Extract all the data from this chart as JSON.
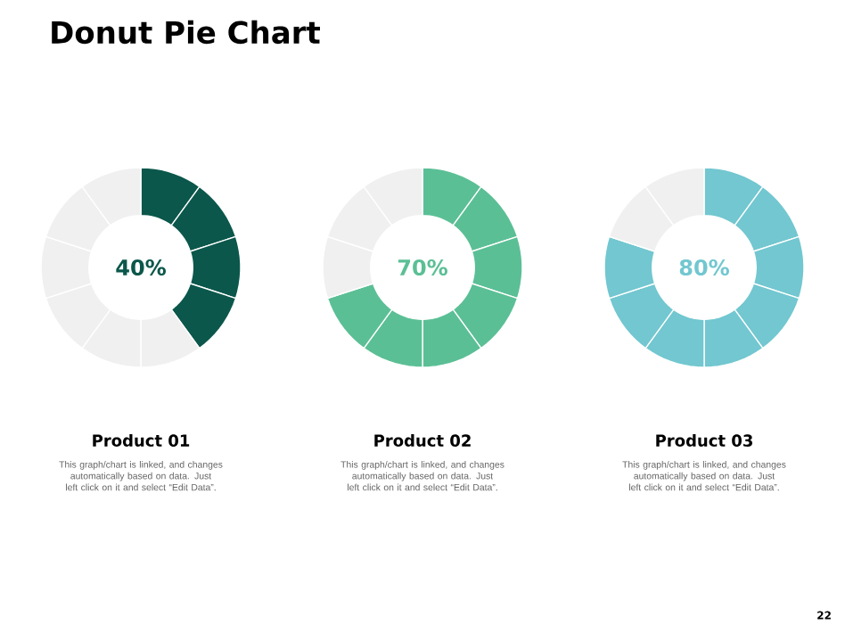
{
  "chart_data": [
    {
      "type": "donut",
      "title": "Product 01",
      "categories": [
        null,
        null,
        null,
        null,
        null,
        null,
        null,
        null,
        null,
        null
      ],
      "values": [
        10,
        10,
        10,
        10,
        10,
        10,
        10,
        10,
        10,
        10
      ],
      "colors": [
        "#0b574b",
        "#0b574b",
        "#0b574b",
        "#0b574b",
        "#f0f0f0",
        "#f0f0f0",
        "#f0f0f0",
        "#f0f0f0",
        "#f0f0f0",
        "#f0f0f0"
      ],
      "annotations": [
        "40%",
        "This graph/chart is linked, and changes automatically based on data. Just left click on it and select “Edit Data”.",
        "Donut Pie Chart"
      ]
    },
    {
      "type": "donut",
      "title": "Product 02",
      "categories": [
        null,
        null,
        null,
        null,
        null,
        null,
        null,
        null,
        null,
        null
      ],
      "values": [
        10,
        10,
        10,
        10,
        10,
        10,
        10,
        10,
        10,
        10
      ],
      "colors": [
        "#5bbf95",
        "#5bbf95",
        "#5bbf95",
        "#5bbf95",
        "#5bbf95",
        "#5bbf95",
        "#5bbf95",
        "#f0f0f0",
        "#f0f0f0",
        "#f0f0f0"
      ],
      "annotations": [
        "70%",
        "This graph/chart is linked, and changes automatically based on data. Just left click on it and select “Edit Data”."
      ]
    },
    {
      "type": "donut",
      "title": "Product 03",
      "categories": [
        null,
        null,
        null,
        null,
        null,
        null,
        null,
        null,
        null,
        null
      ],
      "values": [
        10,
        10,
        10,
        10,
        10,
        10,
        10,
        10,
        10,
        10
      ],
      "colors": [
        "#72c7d0",
        "#72c7d0",
        "#72c7d0",
        "#72c7d0",
        "#72c7d0",
        "#72c7d0",
        "#72c7d0",
        "#72c7d0",
        "#f0f0f0",
        "#f0f0f0"
      ],
      "annotations": [
        "80%",
        "This graph/chart is linked, and changes automatically based on data. Just left click on it and select “Edit Data”.",
        "22"
      ]
    }
  ]
}
